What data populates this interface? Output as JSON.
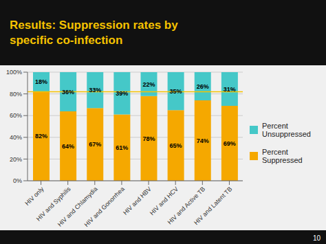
{
  "chart_data": {
    "type": "bar",
    "title": "Results: Suppression rates by\nspecific co-infection",
    "title_color": "#f5c200",
    "background_color": "#111111",
    "plot_bg_color": "#f0f0f0",
    "categories": [
      "HIV only",
      "HIV and Syphilis",
      "HIV and Chlamydia",
      "HIV and Gonorrhea",
      "HIV and HBV",
      "HIV and HCV",
      "HIV and Active TB",
      "HIV and Latent TB"
    ],
    "series": [
      {
        "name": "Percent\nSuppressed",
        "color": "#f5a800",
        "values": [
          82,
          64,
          67,
          61,
          78,
          65,
          74,
          69
        ],
        "value_labels": [
          "82%",
          "64%",
          "67%",
          "61%",
          "78%",
          "65%",
          "74%",
          "69%"
        ]
      },
      {
        "name": "Percent\nUnsuppressed",
        "color": "#45c8c8",
        "values": [
          18,
          36,
          33,
          39,
          22,
          35,
          26,
          31
        ],
        "value_labels": [
          "18%",
          "36%",
          "33%",
          "39%",
          "22%",
          "35%",
          "26%",
          "31%"
        ]
      }
    ],
    "stacked": true,
    "data_labels": true,
    "reference_lines": [
      {
        "y": 82,
        "color": "#f5c200"
      }
    ],
    "ylim": [
      0,
      100
    ],
    "yticks": [
      {
        "value": 0,
        "label": "0%"
      },
      {
        "value": 20,
        "label": "20%"
      },
      {
        "value": 40,
        "label": "40%"
      },
      {
        "value": 60,
        "label": "60%"
      },
      {
        "value": 80,
        "label": "80%"
      },
      {
        "value": 100,
        "label": "100%"
      }
    ],
    "grid": true,
    "legend": "right",
    "annotations": [
      {
        "text": "10"
      }
    ]
  }
}
